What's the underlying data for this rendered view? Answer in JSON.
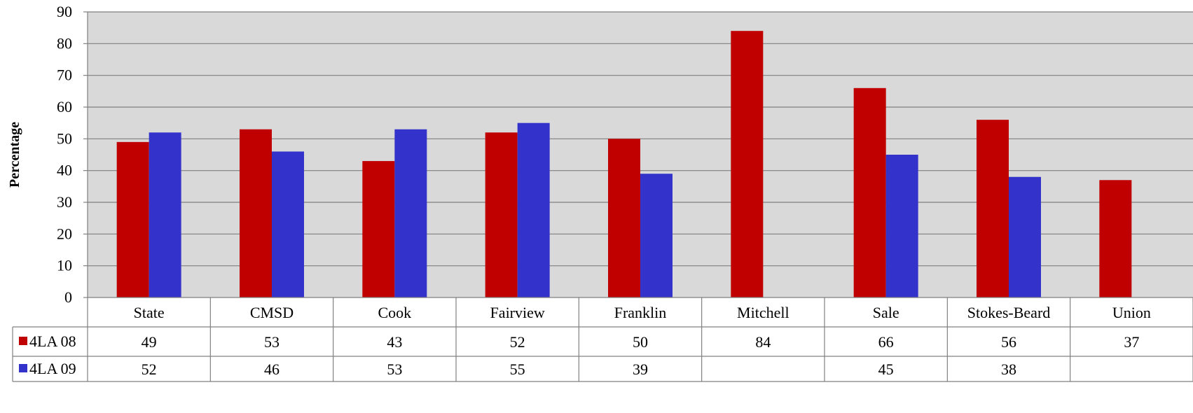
{
  "chart_data": {
    "type": "bar",
    "title": "",
    "xlabel": "",
    "ylabel": "Percentage",
    "ylim": [
      0,
      90
    ],
    "yticks": [
      0,
      10,
      20,
      30,
      40,
      50,
      60,
      70,
      80,
      90
    ],
    "grid": true,
    "legend_placement": "data-table",
    "categories": [
      "State",
      "CMSD",
      "Cook",
      "Fairview",
      "Franklin",
      "Mitchell",
      "Sale",
      "Stokes-Beard",
      "Union"
    ],
    "series": [
      {
        "name": "4LA 08",
        "color": "#c00000",
        "values": [
          49,
          53,
          43,
          52,
          50,
          84,
          66,
          56,
          37
        ]
      },
      {
        "name": "4LA 09",
        "color": "#3333cc",
        "values": [
          52,
          46,
          53,
          55,
          39,
          null,
          45,
          38,
          null
        ]
      }
    ],
    "colors": {
      "plot_background": "#d9d9d9",
      "gridline": "#808080",
      "border": "#808080"
    }
  }
}
